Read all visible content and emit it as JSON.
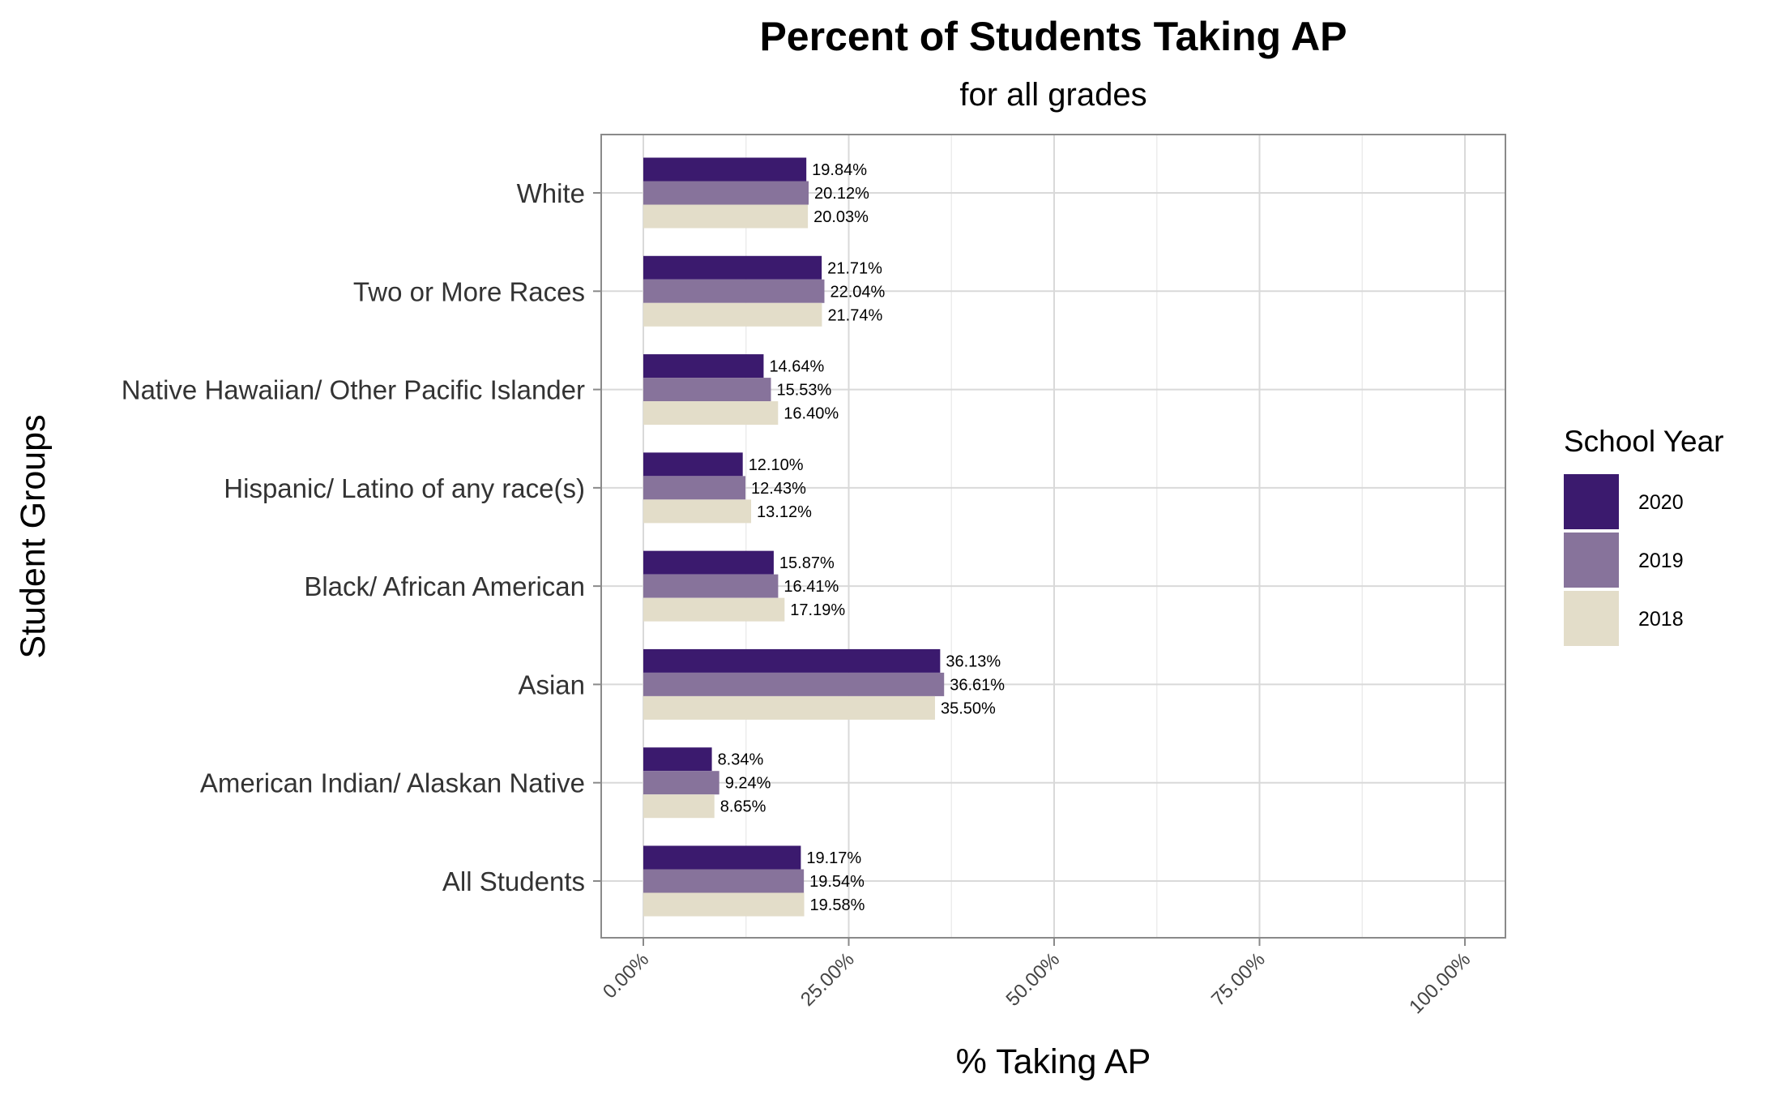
{
  "chart_data": {
    "type": "bar",
    "orientation": "horizontal",
    "title": "Percent of Students Taking AP",
    "subtitle": "for all grades",
    "xlabel": "% Taking AP",
    "ylabel": "Student Groups",
    "xlim": [
      0,
      100
    ],
    "x_ticks": [
      "0.00%",
      "25.00%",
      "50.00%",
      "75.00%",
      "100.00%"
    ],
    "grid": true,
    "legend": {
      "title": "School Year",
      "placement": "right"
    },
    "categories": [
      "White",
      "Two or More Races",
      "Native Hawaiian/ Other Pacific Islander",
      "Hispanic/ Latino of any race(s)",
      "Black/ African American",
      "Asian",
      "American Indian/ Alaskan Native",
      "All Students"
    ],
    "series": [
      {
        "name": "2020",
        "color": "#3b1a6e",
        "values": [
          19.84,
          21.71,
          14.64,
          12.1,
          15.87,
          36.13,
          8.34,
          19.17
        ],
        "labels": [
          "19.84%",
          "21.71%",
          "14.64%",
          "12.10%",
          "15.87%",
          "36.13%",
          "8.34%",
          "19.17%"
        ]
      },
      {
        "name": "2019",
        "color": "#87739b",
        "values": [
          20.12,
          22.04,
          15.53,
          12.43,
          16.41,
          36.61,
          9.24,
          19.54
        ],
        "labels": [
          "20.12%",
          "22.04%",
          "15.53%",
          "12.43%",
          "16.41%",
          "36.61%",
          "9.24%",
          "19.54%"
        ]
      },
      {
        "name": "2018",
        "color": "#e3ddc9",
        "values": [
          20.03,
          21.74,
          16.4,
          13.12,
          17.19,
          35.5,
          8.65,
          19.58
        ],
        "labels": [
          "20.03%",
          "21.74%",
          "16.40%",
          "13.12%",
          "17.19%",
          "35.50%",
          "8.65%",
          "19.58%"
        ]
      }
    ]
  }
}
